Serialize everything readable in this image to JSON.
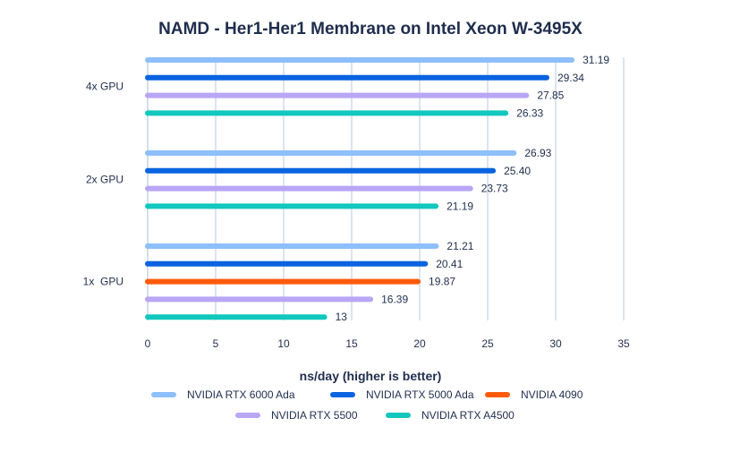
{
  "chart_data": {
    "type": "bar",
    "orientation": "horizontal",
    "title": "NAMD - Her1-Her1 Membrane on Intel Xeon W-3495X",
    "xlabel": "ns/day (higher is better)",
    "xlim": [
      0,
      35
    ],
    "xticks": [
      "0",
      "5",
      "10",
      "15",
      "20",
      "25",
      "30",
      "35"
    ],
    "grid": true,
    "legend_placement": "bottom",
    "series_colors": {
      "NVIDIA RTX 6000 Ada": "#8dbffa",
      "NVIDIA RTX 5000 Ada": "#0a63e0",
      "NVIDIA 4090": "#ff5a0a",
      "NVIDIA RTX 5500": "#b9a6f5",
      "NVIDIA RTX A4500": "#12c7bd"
    },
    "legend": [
      "NVIDIA RTX 6000 Ada",
      "NVIDIA RTX 5000 Ada",
      "NVIDIA 4090",
      "NVIDIA RTX 5500",
      "NVIDIA RTX A4500"
    ],
    "groups": [
      {
        "label": "4x GPU",
        "bars": [
          {
            "series": "NVIDIA RTX 6000 Ada",
            "value": 31.19,
            "label": "31.19"
          },
          {
            "series": "NVIDIA RTX 5000 Ada",
            "value": 29.34,
            "label": "29.34"
          },
          {
            "series": "NVIDIA RTX 5500",
            "value": 27.85,
            "label": "27.85"
          },
          {
            "series": "NVIDIA RTX A4500",
            "value": 26.33,
            "label": "26.33"
          }
        ]
      },
      {
        "label": "2x GPU",
        "bars": [
          {
            "series": "NVIDIA RTX 6000 Ada",
            "value": 26.93,
            "label": "26.93"
          },
          {
            "series": "NVIDIA RTX 5000 Ada",
            "value": 25.4,
            "label": "25.40"
          },
          {
            "series": "NVIDIA RTX 5500",
            "value": 23.73,
            "label": "23.73"
          },
          {
            "series": "NVIDIA RTX A4500",
            "value": 21.19,
            "label": "21.19"
          }
        ]
      },
      {
        "label": "1x  GPU",
        "bars": [
          {
            "series": "NVIDIA RTX 6000 Ada",
            "value": 21.21,
            "label": "21.21"
          },
          {
            "series": "NVIDIA RTX 5000 Ada",
            "value": 20.41,
            "label": "20.41"
          },
          {
            "series": "NVIDIA 4090",
            "value": 19.87,
            "label": "19.87"
          },
          {
            "series": "NVIDIA RTX 5500",
            "value": 16.39,
            "label": "16.39"
          },
          {
            "series": "NVIDIA RTX A4500",
            "value": 13,
            "label": "13"
          }
        ]
      }
    ]
  }
}
